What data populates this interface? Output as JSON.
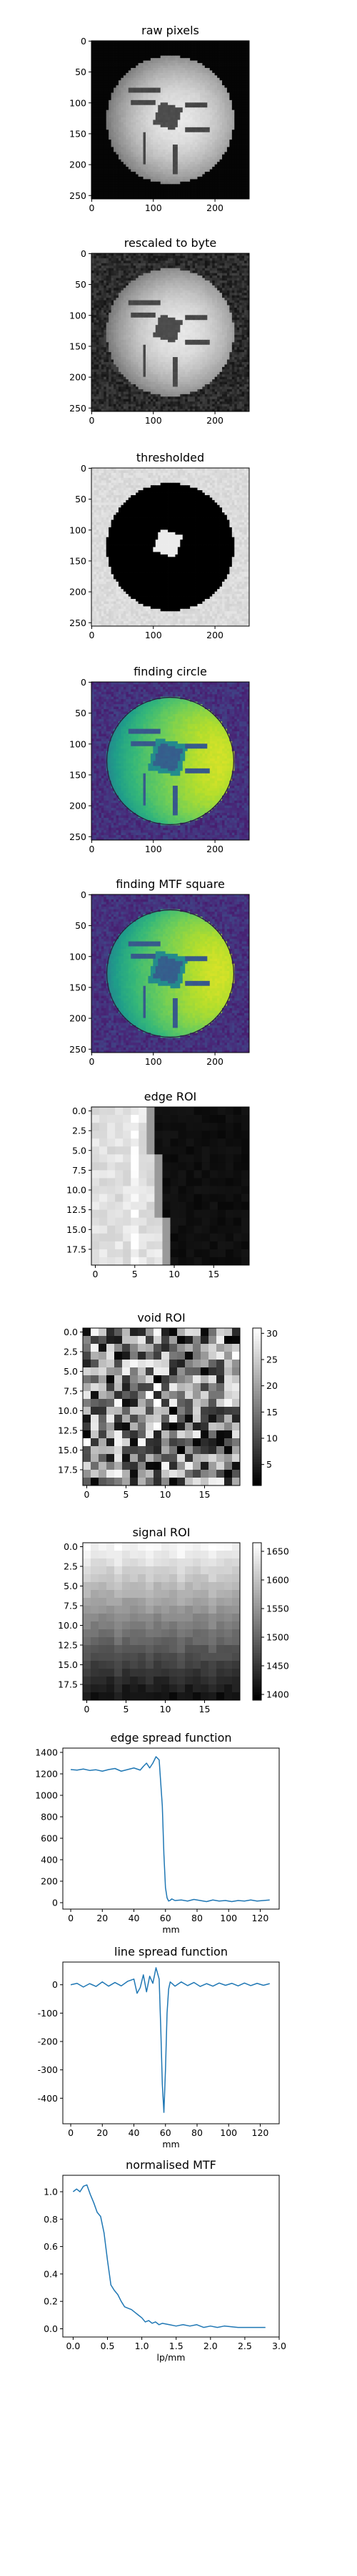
{
  "chart_data": [
    {
      "kind": "image",
      "title": "raw pixels",
      "render": "phantom",
      "style": "raw",
      "cmap": "gray",
      "xticks": [
        "0",
        "100",
        "200"
      ],
      "yticks": [
        "0",
        "50",
        "100",
        "150",
        "200",
        "250"
      ]
    },
    {
      "kind": "image",
      "title": "rescaled to byte",
      "render": "phantom",
      "style": "rescaled",
      "cmap": "gray",
      "xticks": [
        "0",
        "100",
        "200"
      ],
      "yticks": [
        "0",
        "50",
        "100",
        "150",
        "200",
        "250"
      ]
    },
    {
      "kind": "image",
      "title": "thresholded",
      "render": "phantom",
      "style": "thresholded",
      "cmap": "gray",
      "xticks": [
        "0",
        "100",
        "200"
      ],
      "yticks": [
        "0",
        "50",
        "100",
        "150",
        "200",
        "250"
      ]
    },
    {
      "kind": "image",
      "title": "finding circle",
      "render": "phantom",
      "style": "viridis",
      "cmap": "viridis",
      "xticks": [
        "0",
        "100",
        "200"
      ],
      "yticks": [
        "0",
        "50",
        "100",
        "150",
        "200",
        "250"
      ]
    },
    {
      "kind": "image",
      "title": "finding MTF square",
      "render": "phantom",
      "style": "viridis",
      "cmap": "viridis",
      "xticks": [
        "0",
        "100",
        "200"
      ],
      "yticks": [
        "0",
        "50",
        "100",
        "150",
        "200",
        "250"
      ]
    },
    {
      "kind": "image",
      "title": "edge ROI",
      "render": "edge",
      "cmap": "gray",
      "xticks": [
        "0",
        "5",
        "10",
        "15"
      ],
      "yticks": [
        "0.0",
        "2.5",
        "5.0",
        "7.5",
        "10.0",
        "12.5",
        "15.0",
        "17.5"
      ]
    },
    {
      "kind": "image",
      "title": "void ROI",
      "render": "noise",
      "cmap": "gray",
      "xticks": [
        "0",
        "5",
        "10",
        "15"
      ],
      "yticks": [
        "0.0",
        "2.5",
        "5.0",
        "7.5",
        "10.0",
        "12.5",
        "15.0",
        "17.5"
      ],
      "colorbar": {
        "range": [
          1,
          31
        ],
        "ticks": [
          "5",
          "10",
          "15",
          "20",
          "25",
          "30"
        ]
      }
    },
    {
      "kind": "image",
      "title": "signal ROI",
      "render": "gradient",
      "cmap": "gray",
      "xticks": [
        "0",
        "5",
        "10",
        "15"
      ],
      "yticks": [
        "0.0",
        "2.5",
        "5.0",
        "7.5",
        "10.0",
        "12.5",
        "15.0",
        "17.5"
      ],
      "colorbar": {
        "range": [
          1390,
          1665
        ],
        "ticks": [
          "1400",
          "1450",
          "1500",
          "1550",
          "1600",
          "1650"
        ]
      }
    },
    {
      "kind": "line",
      "title": "edge spread function",
      "xlabel": "mm",
      "xlim": [
        -5,
        132
      ],
      "ylim": [
        -60,
        1440
      ],
      "xticks": [
        0,
        20,
        40,
        60,
        80,
        100,
        120
      ],
      "yticks": [
        0,
        200,
        400,
        600,
        800,
        1000,
        1200,
        1400
      ],
      "color": "#1f77b4",
      "x": [
        0,
        4,
        8,
        12,
        16,
        20,
        24,
        28,
        32,
        36,
        40,
        44,
        46,
        48,
        50,
        52,
        54,
        56,
        58,
        59,
        60,
        61,
        62,
        63,
        64,
        66,
        70,
        74,
        78,
        82,
        86,
        90,
        94,
        98,
        102,
        106,
        110,
        114,
        118,
        122,
        126
      ],
      "y": [
        1240,
        1235,
        1245,
        1232,
        1238,
        1225,
        1240,
        1250,
        1225,
        1240,
        1255,
        1235,
        1270,
        1300,
        1255,
        1300,
        1360,
        1330,
        900,
        450,
        140,
        45,
        15,
        22,
        35,
        20,
        25,
        15,
        30,
        20,
        10,
        25,
        15,
        20,
        10,
        20,
        15,
        25,
        15,
        20,
        25
      ]
    },
    {
      "kind": "line",
      "title": "line spread function",
      "xlabel": "mm",
      "xlim": [
        -5,
        132
      ],
      "ylim": [
        -490,
        80
      ],
      "xticks": [
        0,
        20,
        40,
        60,
        80,
        100,
        120
      ],
      "yticks": [
        -400,
        -300,
        -200,
        -100,
        0
      ],
      "color": "#1f77b4",
      "x": [
        0,
        4,
        8,
        12,
        16,
        20,
        24,
        28,
        32,
        36,
        40,
        42,
        44,
        46,
        48,
        50,
        52,
        54,
        56,
        57,
        58,
        59,
        60,
        61,
        62,
        63,
        64,
        66,
        70,
        74,
        78,
        82,
        86,
        90,
        94,
        98,
        102,
        106,
        110,
        114,
        118,
        122,
        126
      ],
      "y": [
        0,
        5,
        -8,
        4,
        -6,
        10,
        -5,
        8,
        -4,
        12,
        20,
        -30,
        -10,
        35,
        -25,
        30,
        5,
        60,
        20,
        -150,
        -350,
        -450,
        -300,
        -100,
        -15,
        10,
        5,
        -5,
        10,
        -3,
        8,
        -6,
        4,
        -5,
        6,
        -2,
        5,
        -4,
        6,
        -3,
        5,
        -2,
        4
      ]
    },
    {
      "kind": "line",
      "title": "normalised MTF",
      "xlabel": "lp/mm",
      "xlim": [
        -0.15,
        3.0
      ],
      "ylim": [
        -0.06,
        1.12
      ],
      "xticks": [
        0.0,
        0.5,
        1.0,
        1.5,
        2.0,
        2.5,
        3.0
      ],
      "yticks": [
        0.0,
        0.2,
        0.4,
        0.6,
        0.8,
        1.0
      ],
      "color": "#1f77b4",
      "x": [
        0.0,
        0.05,
        0.1,
        0.15,
        0.2,
        0.25,
        0.3,
        0.35,
        0.4,
        0.45,
        0.5,
        0.55,
        0.6,
        0.65,
        0.7,
        0.75,
        0.8,
        0.85,
        0.9,
        0.95,
        1.0,
        1.05,
        1.1,
        1.15,
        1.2,
        1.25,
        1.3,
        1.4,
        1.5,
        1.6,
        1.7,
        1.8,
        1.9,
        2.0,
        2.1,
        2.2,
        2.4,
        2.6,
        2.8
      ],
      "y": [
        1.0,
        1.02,
        1.0,
        1.04,
        1.05,
        0.98,
        0.92,
        0.85,
        0.82,
        0.7,
        0.5,
        0.32,
        0.28,
        0.25,
        0.2,
        0.16,
        0.15,
        0.14,
        0.12,
        0.1,
        0.08,
        0.05,
        0.06,
        0.04,
        0.05,
        0.03,
        0.04,
        0.03,
        0.02,
        0.03,
        0.02,
        0.03,
        0.01,
        0.02,
        0.01,
        0.02,
        0.01,
        0.01,
        0.01
      ]
    }
  ]
}
